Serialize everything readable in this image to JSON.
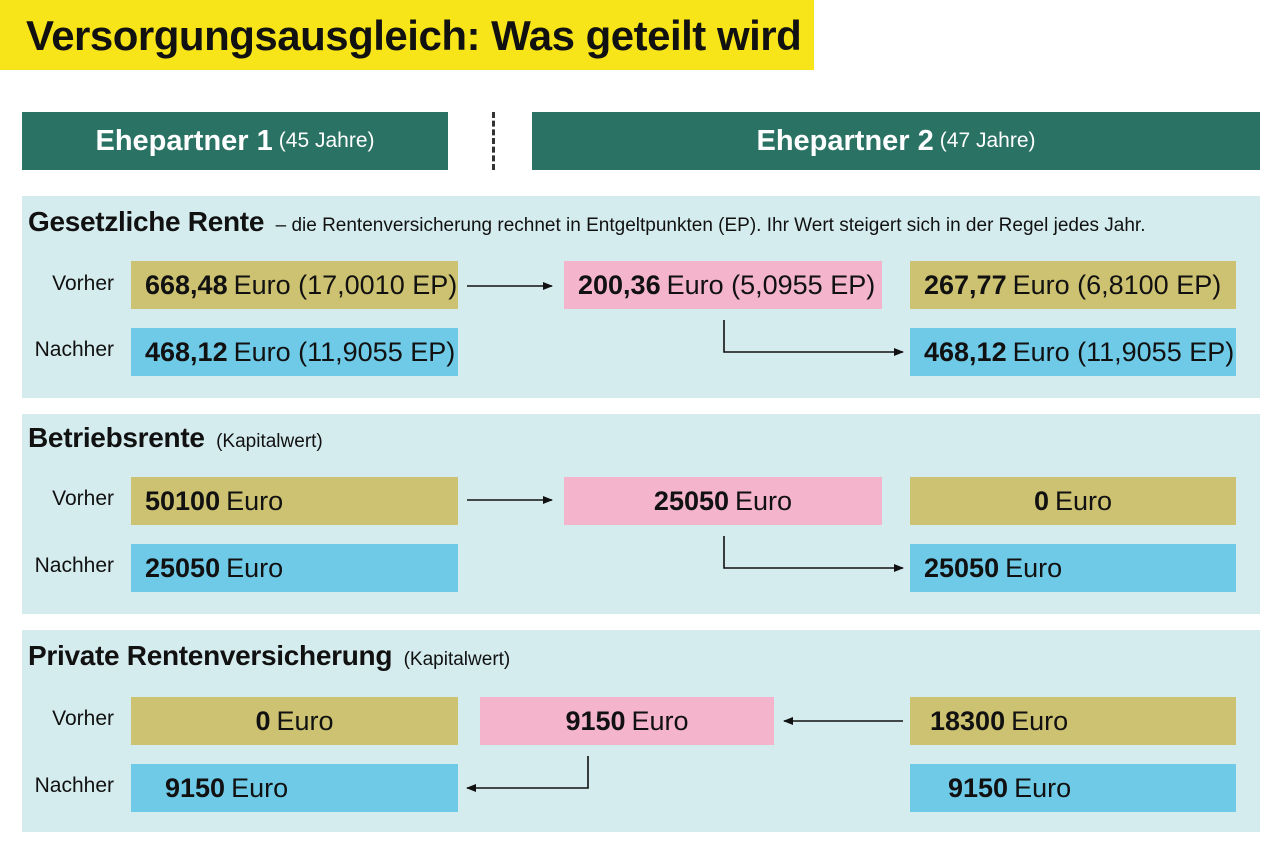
{
  "title": "Versorgungsausgleich: Was geteilt wird",
  "partners": [
    {
      "name": "Ehepartner 1",
      "age": "(45 Jahre)"
    },
    {
      "name": "Ehepartner 2",
      "age": "(47 Jahre)"
    }
  ],
  "row_labels": {
    "before": "Vorher",
    "after": "Nachher"
  },
  "sections": [
    {
      "title": "Gesetzliche Rente",
      "subtitle": "– die Rentenversicherung rechnet in Entgeltpunkten (EP). Ihr Wert steigert sich in der Regel jedes Jahr.",
      "p1_before": {
        "value": "668,48",
        "unit": "Euro (17,0010 EP)"
      },
      "transfer": {
        "value": "200,36",
        "unit": "Euro (5,0955 EP)"
      },
      "p2_before": {
        "value": "267,77",
        "unit": "Euro (6,8100 EP)"
      },
      "p1_after": {
        "value": "468,12",
        "unit": "Euro (11,9055 EP)"
      },
      "p2_after": {
        "value": "468,12",
        "unit": "Euro (11,9055 EP)"
      }
    },
    {
      "title": "Betriebsrente",
      "subtitle": "(Kapitalwert)",
      "p1_before": {
        "value": "50100",
        "unit": "Euro"
      },
      "transfer": {
        "value": "25050",
        "unit": "Euro"
      },
      "p2_before": {
        "value": "0",
        "unit": "Euro"
      },
      "p1_after": {
        "value": "25050",
        "unit": "Euro"
      },
      "p2_after": {
        "value": "25050",
        "unit": "Euro"
      }
    },
    {
      "title": "Private Rentenversicherung",
      "subtitle": "(Kapitalwert)",
      "p1_before": {
        "value": "0",
        "unit": "Euro"
      },
      "transfer": {
        "value": "9150",
        "unit": "Euro"
      },
      "p2_before": {
        "value": "18300",
        "unit": "Euro"
      },
      "p1_after": {
        "value": "9150",
        "unit": "Euro"
      },
      "p2_after": {
        "value": "9150",
        "unit": "Euro"
      }
    }
  ],
  "colors": {
    "title_bg": "#f7e519",
    "header_bg": "#2a7264",
    "section_bg": "#d5ecee",
    "before": "#cdc271",
    "after": "#6fcae8",
    "transfer": "#f3b4cc"
  }
}
